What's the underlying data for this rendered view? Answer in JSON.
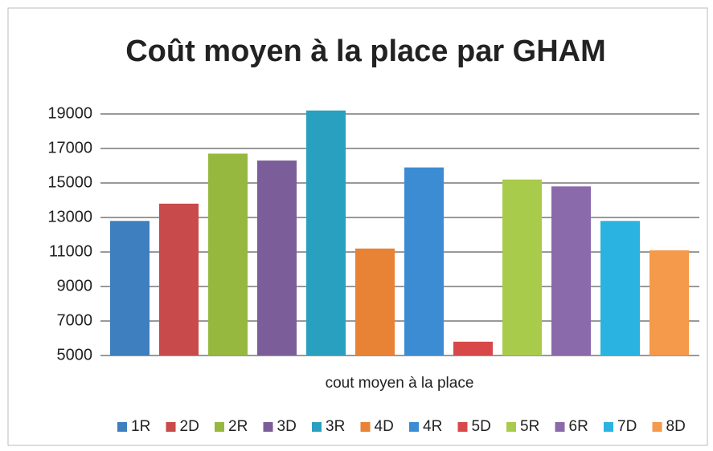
{
  "chart_data": {
    "type": "bar",
    "title": "Coût moyen à la place par GHAM",
    "categories": [
      "cout moyen à la place"
    ],
    "series": [
      {
        "name": "1R",
        "color": "#3d7fbf",
        "values": [
          12800
        ]
      },
      {
        "name": "2D",
        "color": "#c94a4a",
        "values": [
          13800
        ]
      },
      {
        "name": "2R",
        "color": "#96b83e",
        "values": [
          16700
        ]
      },
      {
        "name": "3D",
        "color": "#7b5e99",
        "values": [
          16300
        ]
      },
      {
        "name": "3R",
        "color": "#2aa0c0",
        "values": [
          19200
        ]
      },
      {
        "name": "4D",
        "color": "#e88234",
        "values": [
          11200
        ]
      },
      {
        "name": "4R",
        "color": "#3c8cd4",
        "values": [
          15900
        ]
      },
      {
        "name": "5D",
        "color": "#d84848",
        "values": [
          5800
        ]
      },
      {
        "name": "5R",
        "color": "#a9cb4c",
        "values": [
          15200
        ]
      },
      {
        "name": "6R",
        "color": "#8a6aab",
        "values": [
          14800
        ]
      },
      {
        "name": "7D",
        "color": "#2ab3e0",
        "values": [
          12800
        ]
      },
      {
        "name": "8D",
        "color": "#f5994a",
        "values": [
          11100
        ]
      }
    ],
    "ylim": [
      5000,
      20000
    ],
    "yticks": [
      5000,
      7000,
      9000,
      11000,
      13000,
      15000,
      17000,
      19000
    ],
    "grid": true,
    "legend": "bottom"
  }
}
